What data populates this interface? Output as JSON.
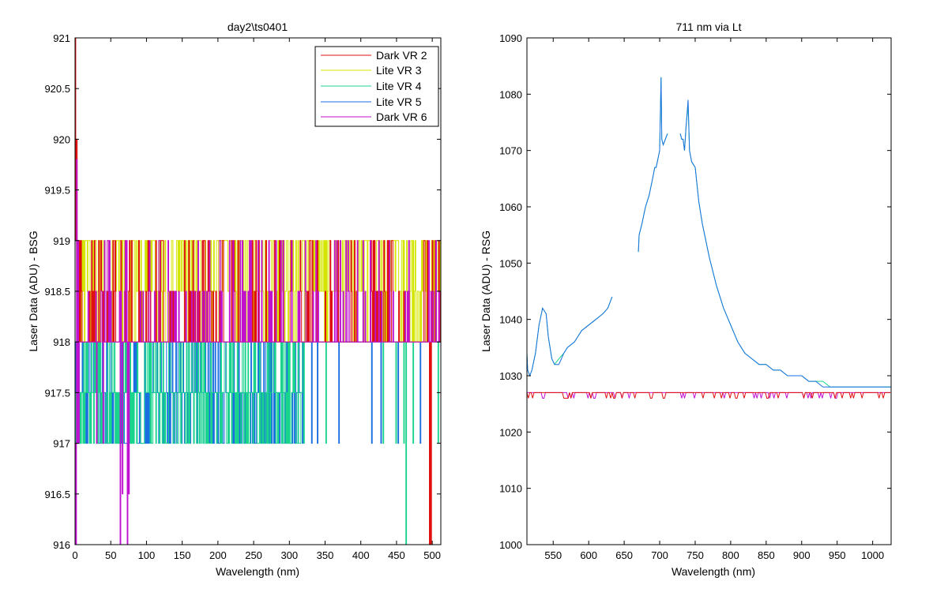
{
  "window": {
    "background": "#ffffff"
  },
  "chart_data": [
    {
      "type": "line",
      "title": "day2\\ts0401",
      "xlabel": "Wavelength (nm)",
      "ylabel": "Laser Data (ADU) - BSG",
      "xlim": [
        0,
        512
      ],
      "ylim": [
        916,
        921
      ],
      "xticks": [
        0,
        50,
        100,
        150,
        200,
        250,
        300,
        350,
        400,
        450,
        500
      ],
      "yticks": [
        916,
        916.5,
        917,
        917.5,
        918,
        918.5,
        919,
        919.5,
        920,
        920.5,
        921
      ],
      "ytick_labels": [
        "916",
        "916.5",
        "917",
        "917.5",
        "918",
        "918.5",
        "919",
        "919.5",
        "920",
        "920.5",
        "921"
      ],
      "grid": false,
      "legend_position": "top-right",
      "series": [
        {
          "name": "Dark VR 2",
          "color": "#e01010",
          "baseline": 918,
          "levels": [
            918,
            918.5,
            919
          ],
          "start_values": [
            921,
            919,
            920,
            918.5,
            919,
            918
          ],
          "spikes": [
            {
              "x": 496,
              "value": 916
            },
            {
              "x": 498,
              "value": 916
            }
          ]
        },
        {
          "name": "Lite VR 3",
          "color": "#d4e600",
          "baseline": 918,
          "levels": [
            918,
            918.5,
            919
          ]
        },
        {
          "name": "Lite VR 4",
          "color": "#19d48c",
          "baseline": 917.5,
          "levels": [
            917,
            917.5,
            918
          ],
          "spikes": [
            {
              "x": 463,
              "value": 916
            }
          ]
        },
        {
          "name": "Lite VR 5",
          "color": "#1a6fe0",
          "baseline": 917.5,
          "levels": [
            917,
            917.5,
            918
          ]
        },
        {
          "name": "Dark VR 6",
          "color": "#c010d0",
          "baseline": 918,
          "levels": [
            917,
            918,
            918.5,
            919
          ],
          "start_values": [
            917,
            916,
            919.8,
            917
          ],
          "spikes": [
            {
              "x": 63,
              "value": 916
            },
            {
              "x": 66,
              "value": 916.5
            },
            {
              "x": 73,
              "value": 916
            },
            {
              "x": 75,
              "value": 916.5
            }
          ]
        }
      ]
    },
    {
      "type": "line",
      "title": "711 nm via Lt",
      "xlabel": "Wavelength (nm)",
      "ylabel": "Laser Data (ADU) - RSG",
      "xlim": [
        513,
        1026
      ],
      "ylim": [
        1000,
        1090
      ],
      "xticks": [
        550,
        600,
        650,
        700,
        750,
        800,
        850,
        900,
        950,
        1000
      ],
      "yticks": [
        1000,
        1010,
        1020,
        1030,
        1040,
        1050,
        1060,
        1070,
        1080,
        1090
      ],
      "ytick_labels": [
        "1000",
        "1010",
        "1020",
        "1030",
        "1040",
        "1050",
        "1060",
        "1070",
        "1080",
        "1090"
      ],
      "grid": false,
      "series": [
        {
          "color": "#e01010",
          "baseline": 1027,
          "dips_to": 1026,
          "spike": {
            "x": 840,
            "value": 1029
          }
        },
        {
          "color": "#c010d0",
          "baseline": 1027,
          "dips_to": 1026
        },
        {
          "color": "#19d48c",
          "segments": [
            {
              "x": [
                513,
                514,
                517,
                520,
                525,
                530,
                535,
                540,
                543,
                548,
                552,
                558,
                565,
                570,
                580,
                590,
                600,
                610,
                620,
                627,
                633
              ],
              "y": [
                1034,
                1031,
                1030,
                1031,
                1034,
                1039,
                1042,
                1041,
                1037,
                1033,
                1032,
                1033,
                1034,
                1035,
                1036,
                1038,
                1039,
                1040,
                1041,
                1042,
                1044
              ]
            },
            {
              "x": [
                670,
                671,
                675,
                680,
                685,
                690,
                693,
                695,
                700,
                702,
                703,
                705,
                708,
                711
              ],
              "y": [
                1052,
                1055,
                1057,
                1060,
                1062,
                1065,
                1067,
                1067,
                1070,
                1083,
                1072,
                1071,
                1072,
                1073
              ]
            },
            {
              "x": [
                729,
                731,
                733,
                735,
                737,
                740,
                742,
                745,
                750,
                755,
                760,
                770,
                780,
                790,
                800,
                810,
                820,
                830,
                840,
                850,
                860,
                870,
                880,
                890,
                900,
                910,
                920,
                930,
                940,
                950,
                960,
                975,
                990,
                1005,
                1020,
                1026
              ],
              "y": [
                1073,
                1072,
                1072,
                1070,
                1074,
                1078,
                1070,
                1068,
                1067,
                1061,
                1057,
                1051,
                1046,
                1042,
                1039,
                1036,
                1034,
                1033,
                1032,
                1032,
                1031,
                1031,
                1030,
                1030,
                1030,
                1029,
                1029,
                1029,
                1028,
                1028,
                1028,
                1028,
                1028,
                1028,
                1028,
                1028
              ]
            }
          ]
        },
        {
          "color": "#1a6fe0",
          "segments": [
            {
              "x": [
                513,
                514,
                517,
                520,
                525,
                530,
                535,
                540,
                543,
                548,
                552,
                558,
                565,
                570,
                580,
                590,
                600,
                610,
                620,
                627,
                633
              ],
              "y": [
                1034,
                1031,
                1030,
                1031,
                1034,
                1039,
                1042,
                1041,
                1037,
                1033,
                1032,
                1032,
                1034,
                1035,
                1036,
                1038,
                1039,
                1040,
                1041,
                1042,
                1044
              ]
            },
            {
              "x": [
                670,
                671,
                675,
                680,
                685,
                690,
                693,
                695,
                700,
                702,
                703,
                705,
                708,
                711
              ],
              "y": [
                1052,
                1055,
                1057,
                1060,
                1062,
                1065,
                1067,
                1067,
                1070,
                1083,
                1072,
                1071,
                1072,
                1073
              ]
            },
            {
              "x": [
                729,
                731,
                733,
                735,
                737,
                740,
                742,
                745,
                750,
                755,
                760,
                770,
                780,
                790,
                800,
                810,
                820,
                830,
                840,
                850,
                860,
                870,
                880,
                890,
                900,
                910,
                920,
                930,
                940,
                950,
                960,
                975,
                990,
                1005,
                1020,
                1026
              ],
              "y": [
                1073,
                1072,
                1072,
                1070,
                1074,
                1079,
                1070,
                1068,
                1067,
                1061,
                1057,
                1051,
                1046,
                1042,
                1039,
                1036,
                1034,
                1033,
                1032,
                1032,
                1031,
                1031,
                1030,
                1030,
                1030,
                1029,
                1029,
                1028,
                1028,
                1028,
                1028,
                1028,
                1028,
                1028,
                1028,
                1028
              ]
            }
          ]
        }
      ]
    }
  ]
}
